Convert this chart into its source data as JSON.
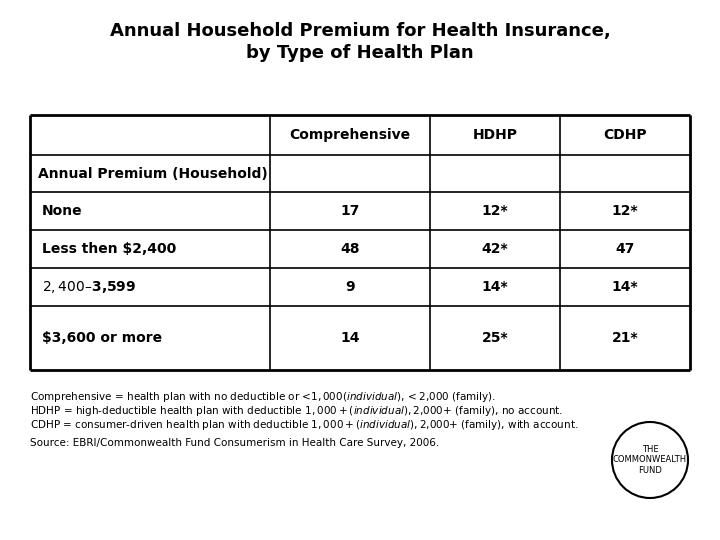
{
  "title_line1": "Annual Household Premium for Health Insurance,",
  "title_line2": "by Type of Health Plan",
  "col_headers": [
    "",
    "Comprehensive",
    "HDHP",
    "CDHP"
  ],
  "row_section_header": "Annual Premium (Household)",
  "rows": [
    [
      "None",
      "17",
      "12*",
      "12*"
    ],
    [
      "Less then $2,400",
      "48",
      "42*",
      "47"
    ],
    [
      "$2,400–$3,599",
      "9",
      "14*",
      "14*"
    ],
    [
      "$3,600 or more",
      "14",
      "25*",
      "21*"
    ]
  ],
  "footnote1": "Comprehensive = health plan with no deductible or <$1,000 (individual), <$2,000 (family).",
  "footnote2": "HDHP = high-deductible health plan with deductible $1,000+ (individual), $2,000+ (family), no account.",
  "footnote3": "CDHP = consumer-driven health plan with deductible $1,000+ (individual), $2,000+ (family), with account.",
  "footnote4": "Source: EBRI/Commonwealth Fund Consumerism in Health Care Survey, 2006.",
  "logo_text": "THE\nCOMMONWEALTH\nFUND",
  "background_color": "#ffffff"
}
